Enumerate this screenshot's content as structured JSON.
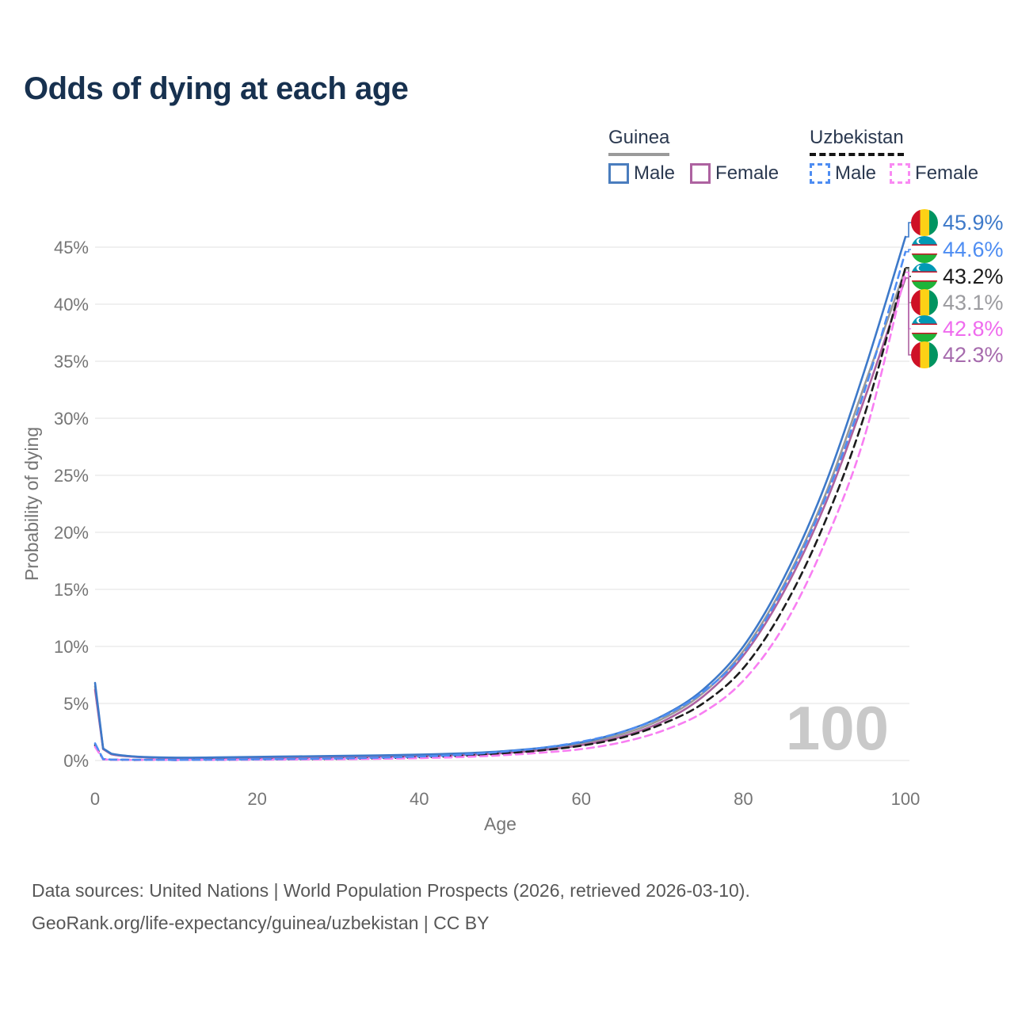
{
  "title": "Odds of dying at each age",
  "watermark": "100",
  "colors": {
    "title_text": "#17314f",
    "legend_text": "#2b3950",
    "axis_text": "#757575",
    "gridline": "#ececec",
    "watermark_text": "#c9c9c9",
    "footer_text": "#575757"
  },
  "legend": {
    "groups": [
      {
        "name": "Guinea",
        "line_style": "solid",
        "underline_color": "#9a9a9a",
        "items": [
          {
            "label": "Male",
            "color": "#4a7dbe",
            "dashed": false
          },
          {
            "label": "Female",
            "color": "#ad62a0",
            "dashed": false
          }
        ]
      },
      {
        "name": "Uzbekistan",
        "line_style": "dashed",
        "underline_color": "#141414",
        "items": [
          {
            "label": "Male",
            "color": "#4e8df2",
            "dashed": true
          },
          {
            "label": "Female",
            "color": "#f98af3",
            "dashed": true
          }
        ]
      }
    ]
  },
  "chart_data": {
    "type": "line",
    "title": "Odds of dying at each age",
    "xlabel": "Age",
    "ylabel": "Probability of dying",
    "xlim": [
      0,
      100
    ],
    "ylim": [
      0,
      47
    ],
    "x_ticks": [
      0,
      20,
      40,
      60,
      80,
      100
    ],
    "y_ticks_pct": [
      0,
      5,
      10,
      15,
      20,
      25,
      30,
      35,
      40,
      45
    ],
    "grid": "horizontal",
    "legend_position": "top-right",
    "x": [
      0,
      1,
      2,
      5,
      10,
      15,
      20,
      25,
      30,
      35,
      40,
      45,
      50,
      55,
      60,
      65,
      70,
      75,
      80,
      85,
      90,
      95,
      100
    ],
    "series": [
      {
        "id": "guinea-both",
        "name": "Guinea",
        "country": "Guinea",
        "sex": "both",
        "color": "#9a9a9a",
        "dashed": false,
        "values": [
          6.5,
          1.02,
          0.57,
          0.33,
          0.23,
          0.24,
          0.28,
          0.32,
          0.35,
          0.4,
          0.46,
          0.55,
          0.71,
          1.0,
          1.47,
          2.3,
          3.65,
          5.9,
          9.6,
          15.4,
          23.1,
          33.0,
          43.1
        ]
      },
      {
        "id": "guinea-female",
        "name": "Guinea Female",
        "country": "Guinea",
        "sex": "female",
        "color": "#ad62a0",
        "dashed": false,
        "values": [
          6.2,
          1.0,
          0.55,
          0.32,
          0.22,
          0.22,
          0.25,
          0.28,
          0.31,
          0.35,
          0.4,
          0.48,
          0.63,
          0.9,
          1.35,
          2.1,
          3.4,
          5.6,
          9.2,
          14.8,
          22.3,
          31.8,
          42.3
        ]
      },
      {
        "id": "guinea-male",
        "name": "Guinea Male",
        "country": "Guinea",
        "sex": "male",
        "color": "#3d79c9",
        "dashed": false,
        "values": [
          6.8,
          1.05,
          0.6,
          0.35,
          0.25,
          0.27,
          0.32,
          0.36,
          0.4,
          0.45,
          0.52,
          0.62,
          0.8,
          1.1,
          1.6,
          2.5,
          3.9,
          6.2,
          10.0,
          16.0,
          24.0,
          34.3,
          45.9
        ]
      },
      {
        "id": "uzbekistan-both",
        "name": "Uzbekistan",
        "country": "Uzbekistan",
        "sex": "both",
        "color": "#1c1c1c",
        "dashed": true,
        "values": [
          1.35,
          0.11,
          0.07,
          0.05,
          0.045,
          0.06,
          0.09,
          0.11,
          0.14,
          0.2,
          0.28,
          0.4,
          0.6,
          0.88,
          1.3,
          2.0,
          3.2,
          5.0,
          8.1,
          13.4,
          20.8,
          30.4,
          43.2
        ]
      },
      {
        "id": "uzbekistan-female",
        "name": "Uzbekistan Female",
        "country": "Uzbekistan",
        "sex": "female",
        "color": "#f87ef2",
        "dashed": true,
        "values": [
          1.2,
          0.1,
          0.06,
          0.04,
          0.04,
          0.05,
          0.07,
          0.09,
          0.11,
          0.15,
          0.21,
          0.3,
          0.45,
          0.68,
          1.0,
          1.6,
          2.6,
          4.2,
          7.0,
          11.8,
          19.0,
          28.5,
          42.8
        ]
      },
      {
        "id": "uzbekistan-male",
        "name": "Uzbekistan Male",
        "country": "Uzbekistan",
        "sex": "male",
        "color": "#4e8df2",
        "dashed": true,
        "values": [
          1.5,
          0.12,
          0.08,
          0.06,
          0.05,
          0.07,
          0.11,
          0.14,
          0.18,
          0.25,
          0.35,
          0.5,
          0.75,
          1.1,
          1.65,
          2.5,
          3.85,
          6.0,
          9.4,
          15.2,
          22.8,
          32.5,
          44.6
        ]
      }
    ]
  },
  "end_labels": [
    {
      "series": "guinea-male",
      "flag": "guinea",
      "text": "45.9%",
      "color": "#3d79c9"
    },
    {
      "series": "uzbekistan-male",
      "flag": "uzbekistan",
      "text": "44.6%",
      "color": "#4e8df2"
    },
    {
      "series": "uzbekistan-both",
      "flag": "uzbekistan",
      "text": "43.2%",
      "color": "#1c1c1c"
    },
    {
      "series": "guinea-both",
      "flag": "guinea",
      "text": "43.1%",
      "color": "#9b9b9f"
    },
    {
      "series": "uzbekistan-female",
      "flag": "uzbekistan",
      "text": "42.8%",
      "color": "#ef6bee"
    },
    {
      "series": "guinea-female",
      "flag": "guinea",
      "text": "42.3%",
      "color": "#a66bad"
    }
  ],
  "flags": {
    "guinea": {
      "stripe_colors": [
        "#ce1126",
        "#fcd116",
        "#009460"
      ]
    },
    "uzbekistan": {
      "stripe_colors": [
        "#0099b5",
        "#ce1126",
        "#ffffff",
        "#ce1126",
        "#1eb53a"
      ]
    }
  },
  "footer": {
    "line1": "Data sources: United Nations | World Population Prospects (2026, retrieved 2026-03-10).",
    "line2": "GeoRank.org/life-expectancy/guinea/uzbekistan | CC BY"
  }
}
